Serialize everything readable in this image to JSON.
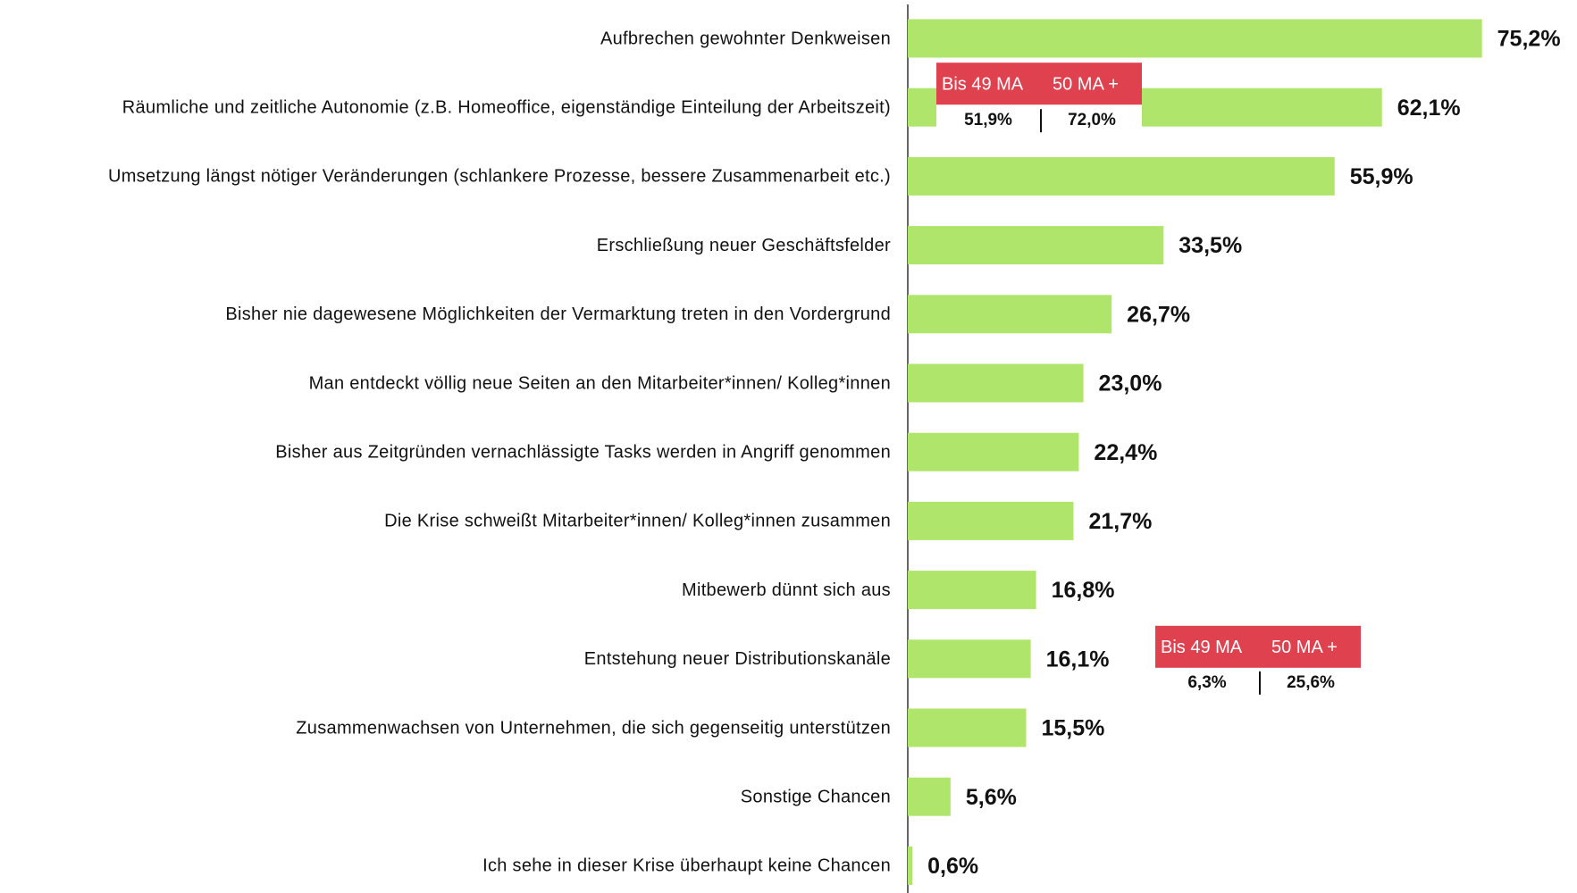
{
  "chart_data": {
    "type": "bar",
    "orientation": "horizontal",
    "categories": [
      "Aufbrechen gewohnter Denkweisen",
      "Räumliche und zeitliche Autonomie (z.B. Homeoffice, eigenständige Einteilung der Arbeitszeit)",
      "Umsetzung längst nötiger Veränderungen (schlankere Prozesse, bessere Zusammenarbeit etc.)",
      "Erschließung neuer Geschäftsfelder",
      "Bisher nie dagewesene Möglichkeiten der Vermarktung treten in den Vordergrund",
      "Man entdeckt völlig neue Seiten an den Mitarbeiter*innen/ Kolleg*innen",
      "Bisher aus Zeitgründen vernachlässigte Tasks werden in Angriff genommen",
      "Die Krise schweißt Mitarbeiter*innen/ Kolleg*innen zusammen",
      "Mitbewerb dünnt sich aus",
      "Entstehung neuer Distributionskanäle",
      "Zusammenwachsen von Unternehmen, die sich gegenseitig unterstützen",
      "Sonstige Chancen",
      "Ich sehe in dieser Krise überhaupt keine Chancen"
    ],
    "values": [
      75.2,
      62.1,
      55.9,
      33.5,
      26.7,
      23.0,
      22.4,
      21.7,
      16.8,
      16.1,
      15.5,
      5.6,
      0.6
    ],
    "value_labels": [
      "75,2%",
      "62,1%",
      "55,9%",
      "33,5%",
      "26,7%",
      "23,0%",
      "22,4%",
      "21,7%",
      "16,8%",
      "16,1%",
      "15,5%",
      "5,6%",
      "0,6%"
    ],
    "color": "#b0e56b",
    "annotations": [
      {
        "labels": [
          "Bis 49 MA",
          "50 MA +"
        ],
        "values": [
          51.9,
          72.0
        ],
        "value_labels": [
          "51,9%",
          "72,0%"
        ],
        "color": "#e0414f"
      },
      {
        "labels": [
          "Bis 49 MA",
          "50 MA +"
        ],
        "values": [
          6.3,
          25.6
        ],
        "value_labels": [
          "6,3%",
          "25,6%"
        ],
        "color": "#e0414f"
      }
    ]
  }
}
